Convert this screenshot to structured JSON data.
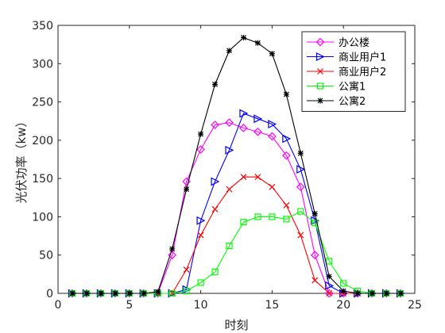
{
  "chart_data": {
    "type": "line",
    "title": "",
    "xlabel": "时刻",
    "ylabel": "光伏功率（kw）",
    "xlim": [
      0,
      25
    ],
    "ylim": [
      0,
      350
    ],
    "xticks": [
      0,
      5,
      10,
      15,
      20,
      25
    ],
    "yticks": [
      0,
      50,
      100,
      150,
      200,
      250,
      300,
      350
    ],
    "grid": false,
    "legend_position": "top-right",
    "x": [
      1,
      2,
      3,
      4,
      5,
      6,
      7,
      8,
      9,
      10,
      11,
      12,
      13,
      14,
      15,
      16,
      17,
      18,
      19,
      20,
      21,
      22,
      23,
      24
    ],
    "series": [
      {
        "name": "办公楼",
        "color": "#ff00ff",
        "marker": "diamond",
        "values": [
          0,
          0,
          0,
          0,
          0,
          0,
          0,
          50,
          146,
          188,
          220,
          223,
          216,
          211,
          205,
          180,
          139,
          50,
          0,
          0,
          0,
          0,
          0,
          0
        ]
      },
      {
        "name": "商业用户1",
        "color": "#0000ff",
        "marker": "triangle-right",
        "values": [
          0,
          0,
          0,
          0,
          0,
          0,
          0,
          0,
          5,
          95,
          146,
          187,
          235,
          228,
          221,
          202,
          162,
          95,
          10,
          0,
          0,
          0,
          0,
          0
        ]
      },
      {
        "name": "商业用户2",
        "color": "#ff0000",
        "marker": "x",
        "values": [
          0,
          0,
          0,
          0,
          0,
          0,
          0,
          0,
          31,
          76,
          110,
          136,
          152,
          152,
          139,
          115,
          76,
          17,
          0,
          0,
          0,
          0,
          0,
          0
        ]
      },
      {
        "name": "公寓1",
        "color": "#00ff00",
        "marker": "square",
        "values": [
          0,
          0,
          0,
          0,
          0,
          0,
          0,
          0,
          3,
          14,
          28,
          62,
          93,
          100,
          100,
          97,
          107,
          92,
          42,
          13,
          3,
          0,
          0,
          0
        ]
      },
      {
        "name": "公寓2",
        "color": "#000000",
        "marker": "asterisk",
        "values": [
          0,
          0,
          0,
          0,
          0,
          0,
          2,
          58,
          136,
          208,
          273,
          317,
          334,
          327,
          313,
          260,
          183,
          104,
          22,
          3,
          0,
          0,
          0,
          0
        ]
      }
    ]
  }
}
